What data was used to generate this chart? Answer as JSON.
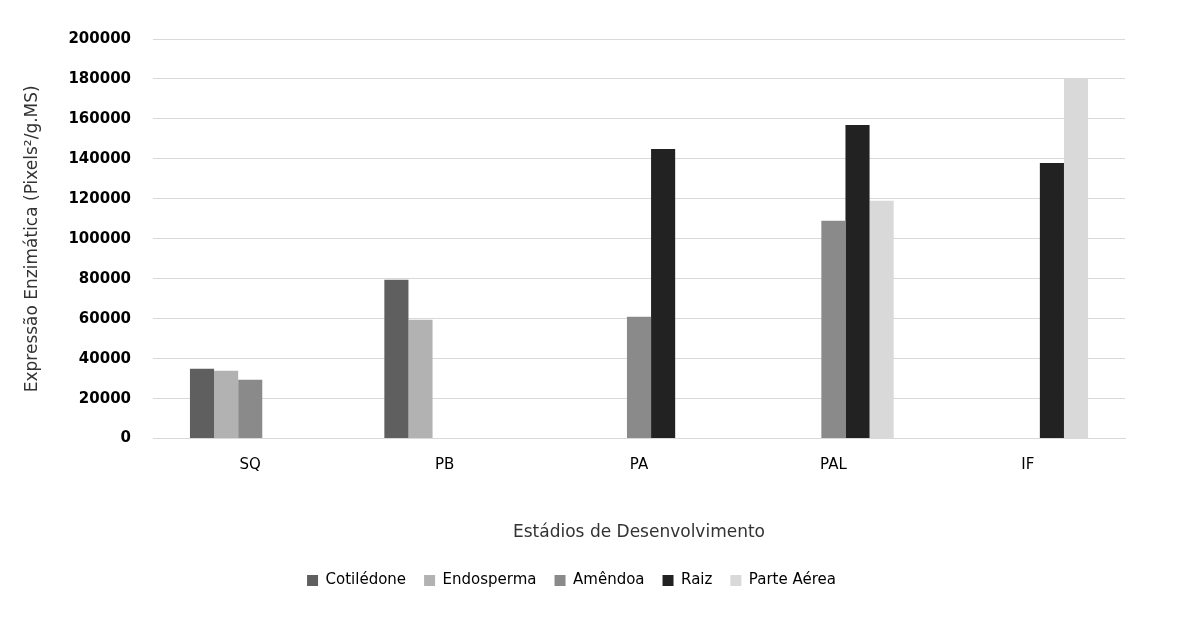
{
  "chart_data": {
    "type": "bar",
    "xlabel": "Estádios de Desenvolvimento",
    "ylabel": "Expressão Enzimática (Pixels²/g.MS)",
    "categories": [
      "SQ",
      "PB",
      "PA",
      "PAL",
      "IF"
    ],
    "series": [
      {
        "name": "Cotilédone",
        "color": "#5f5f5f",
        "values": [
          35000,
          79500,
          null,
          null,
          null
        ]
      },
      {
        "name": "Endosperma",
        "color": "#b2b2b2",
        "values": [
          34000,
          59500,
          null,
          null,
          null
        ]
      },
      {
        "name": "Amêndoa",
        "color": "#8a8a8a",
        "values": [
          29500,
          null,
          61000,
          109000,
          null
        ]
      },
      {
        "name": "Raiz",
        "color": "#222222",
        "values": [
          null,
          null,
          145000,
          157000,
          138000
        ]
      },
      {
        "name": "Parte Aérea",
        "color": "#d9d9d9",
        "values": [
          null,
          null,
          null,
          119000,
          180000
        ]
      }
    ],
    "ylim": [
      0,
      200000
    ],
    "yticks": [
      0,
      20000,
      40000,
      60000,
      80000,
      100000,
      120000,
      140000,
      160000,
      180000,
      200000
    ],
    "grid": "y",
    "legend": "bottom"
  }
}
